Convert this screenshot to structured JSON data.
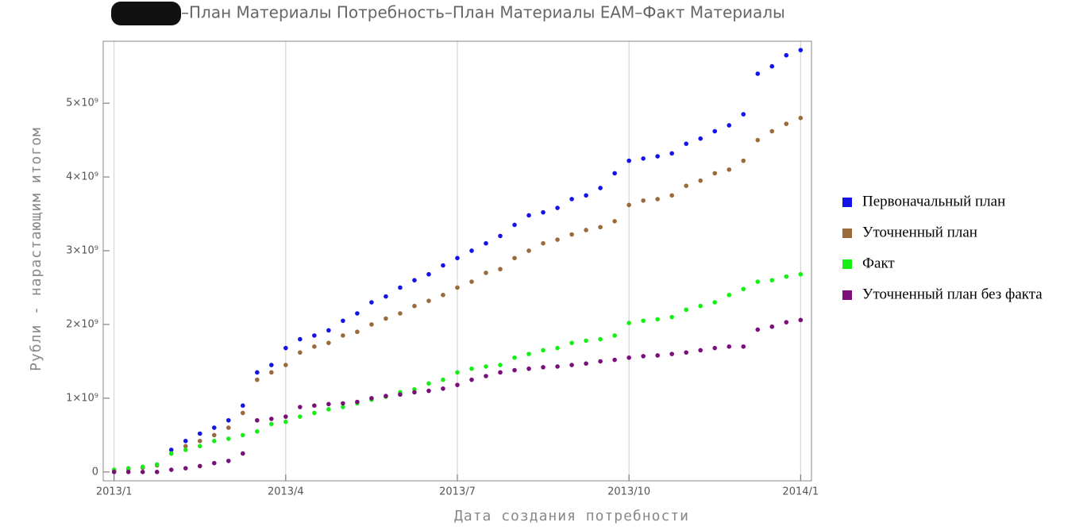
{
  "chart_data": {
    "type": "scatter",
    "title": "–План Материалы Потребность–План Материалы ЕАМ–Факт Материалы",
    "x_label": "Дата создания потребности",
    "y_label": "Рубли - нарастающим итогом",
    "x": [
      0,
      0.25,
      0.5,
      0.75,
      1,
      1.25,
      1.5,
      1.75,
      2,
      2.25,
      2.5,
      2.75,
      3,
      3.25,
      3.5,
      3.75,
      4,
      4.25,
      4.5,
      4.75,
      5,
      5.25,
      5.5,
      5.75,
      6,
      6.25,
      6.5,
      6.75,
      7,
      7.25,
      7.5,
      7.75,
      8,
      8.25,
      8.5,
      8.75,
      9,
      9.25,
      9.5,
      9.75,
      10,
      10.25,
      10.5,
      10.75,
      11,
      11.25,
      11.5,
      11.75,
      12
    ],
    "series": [
      {
        "name": "Первоначальный план",
        "color": "#1414e6",
        "values": [
          20000000.0,
          40000000.0,
          60000000.0,
          100000000.0,
          300000000.0,
          420000000.0,
          520000000.0,
          600000000.0,
          700000000.0,
          900000000.0,
          1350000000.0,
          1450000000.0,
          1680000000.0,
          1800000000.0,
          1850000000.0,
          1920000000.0,
          2050000000.0,
          2150000000.0,
          2300000000.0,
          2380000000.0,
          2500000000.0,
          2600000000.0,
          2680000000.0,
          2800000000.0,
          2900000000.0,
          3000000000.0,
          3100000000.0,
          3200000000.0,
          3350000000.0,
          3480000000.0,
          3520000000.0,
          3580000000.0,
          3700000000.0,
          3750000000.0,
          3850000000.0,
          4050000000.0,
          4220000000.0,
          4250000000.0,
          4280000000.0,
          4320000000.0,
          4450000000.0,
          4520000000.0,
          4620000000.0,
          4700000000.0,
          4850000000.0,
          5400000000.0,
          5500000000.0,
          5650000000.0,
          5720000000.0
        ]
      },
      {
        "name": "Уточненный план",
        "color": "#9b6a3a",
        "values": [
          20000000.0,
          40000000.0,
          60000000.0,
          90000000.0,
          250000000.0,
          350000000.0,
          420000000.0,
          500000000.0,
          600000000.0,
          800000000.0,
          1250000000.0,
          1350000000.0,
          1450000000.0,
          1620000000.0,
          1700000000.0,
          1750000000.0,
          1850000000.0,
          1900000000.0,
          2000000000.0,
          2080000000.0,
          2150000000.0,
          2250000000.0,
          2320000000.0,
          2400000000.0,
          2500000000.0,
          2580000000.0,
          2700000000.0,
          2750000000.0,
          2900000000.0,
          3000000000.0,
          3100000000.0,
          3150000000.0,
          3220000000.0,
          3280000000.0,
          3320000000.0,
          3400000000.0,
          3620000000.0,
          3680000000.0,
          3700000000.0,
          3750000000.0,
          3880000000.0,
          3950000000.0,
          4050000000.0,
          4100000000.0,
          4220000000.0,
          4500000000.0,
          4620000000.0,
          4720000000.0,
          4800000000.0
        ]
      },
      {
        "name": "Факт",
        "color": "#16ee16",
        "values": [
          30000000.0,
          50000000.0,
          70000000.0,
          100000000.0,
          250000000.0,
          300000000.0,
          350000000.0,
          420000000.0,
          450000000.0,
          500000000.0,
          550000000.0,
          650000000.0,
          680000000.0,
          750000000.0,
          800000000.0,
          850000000.0,
          880000000.0,
          930000000.0,
          980000000.0,
          1020000000.0,
          1080000000.0,
          1120000000.0,
          1200000000.0,
          1250000000.0,
          1350000000.0,
          1400000000.0,
          1430000000.0,
          1450000000.0,
          1550000000.0,
          1600000000.0,
          1650000000.0,
          1680000000.0,
          1750000000.0,
          1780000000.0,
          1800000000.0,
          1850000000.0,
          2020000000.0,
          2050000000.0,
          2070000000.0,
          2100000000.0,
          2200000000.0,
          2250000000.0,
          2300000000.0,
          2400000000.0,
          2480000000.0,
          2580000000.0,
          2600000000.0,
          2650000000.0,
          2680000000.0
        ]
      },
      {
        "name": "Уточненный план без факта",
        "color": "#7a0f7a",
        "values": [
          0,
          0,
          0,
          0,
          30000000.0,
          50000000.0,
          80000000.0,
          120000000.0,
          150000000.0,
          250000000.0,
          700000000.0,
          720000000.0,
          750000000.0,
          880000000.0,
          900000000.0,
          920000000.0,
          930000000.0,
          950000000.0,
          1000000000.0,
          1030000000.0,
          1050000000.0,
          1080000000.0,
          1100000000.0,
          1130000000.0,
          1180000000.0,
          1250000000.0,
          1300000000.0,
          1350000000.0,
          1380000000.0,
          1400000000.0,
          1420000000.0,
          1430000000.0,
          1450000000.0,
          1470000000.0,
          1500000000.0,
          1520000000.0,
          1550000000.0,
          1570000000.0,
          1580000000.0,
          1600000000.0,
          1620000000.0,
          1650000000.0,
          1680000000.0,
          1700000000.0,
          1700000000.0,
          1930000000.0,
          1970000000.0,
          2030000000.0,
          2060000000.0
        ]
      }
    ],
    "xlim": [
      -0.19,
      12.19
    ],
    "ylim": [
      -120000000.0,
      5840000000.0
    ],
    "xticks": [
      {
        "value": 0,
        "label": "2013/1"
      },
      {
        "value": 3,
        "label": "2013/4"
      },
      {
        "value": 6,
        "label": "2013/7"
      },
      {
        "value": 9,
        "label": "2013/10"
      },
      {
        "value": 12,
        "label": "2014/1"
      }
    ],
    "yticks": [
      0,
      {
        "value": 1000000000.0,
        "label": "1×10⁹"
      },
      {
        "value": 2000000000.0,
        "label": "2×10⁹"
      },
      {
        "value": 3000000000.0,
        "label": "3×10⁹"
      },
      {
        "value": 4000000000.0,
        "label": "4×10⁹"
      },
      {
        "value": 5000000000.0,
        "label": "5×10⁹"
      }
    ],
    "grid": "x",
    "legend": "right"
  }
}
